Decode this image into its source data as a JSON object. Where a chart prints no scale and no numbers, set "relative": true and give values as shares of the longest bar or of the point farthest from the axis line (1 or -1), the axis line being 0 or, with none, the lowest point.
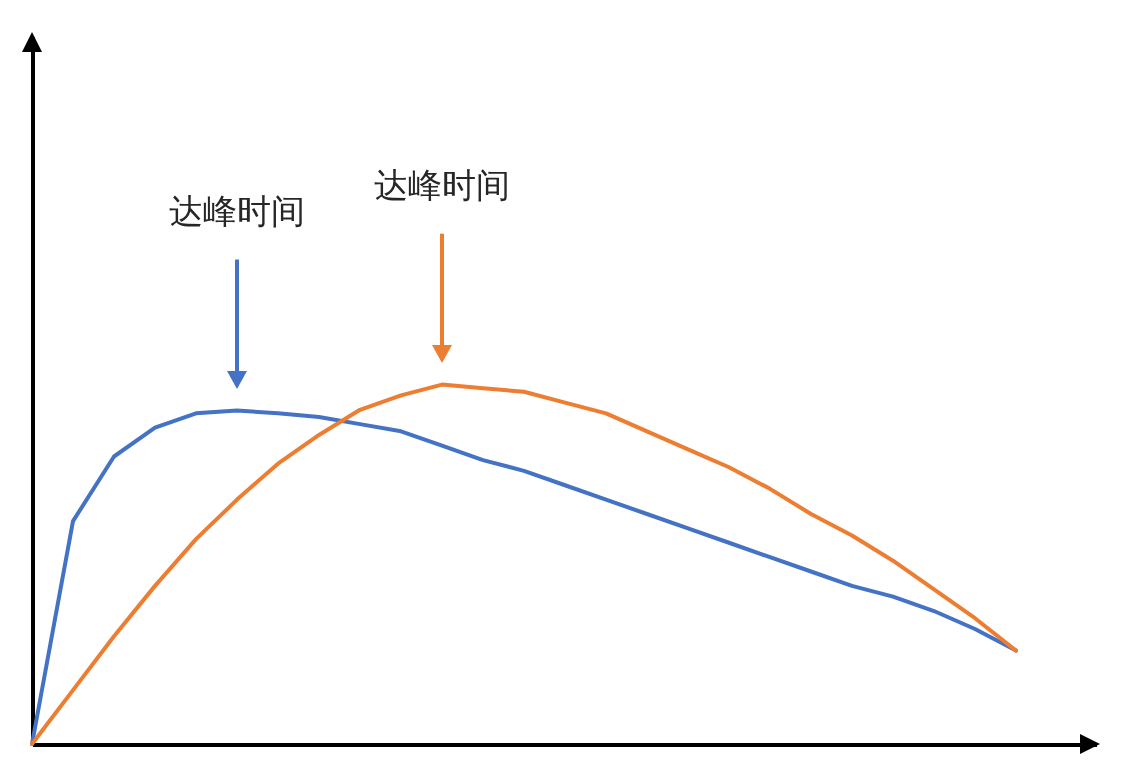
{
  "chart_data": {
    "type": "line",
    "relative": true,
    "categories": [
      null,
      null,
      null,
      null,
      null,
      null,
      null,
      null,
      null,
      null,
      null,
      null,
      null,
      null,
      null,
      null,
      null,
      null,
      null,
      null,
      null,
      null,
      null,
      null,
      null
    ],
    "annotations": [
      "达峰时间",
      "达峰时间"
    ],
    "series": [
      {
        "color": "#4472c4",
        "values": [
          0,
          0.62,
          0.8,
          0.88,
          0.92,
          0.928,
          0.92,
          0.91,
          0.89,
          0.87,
          0.83,
          0.79,
          0.76,
          0.72,
          0.68,
          0.64,
          0.6,
          0.56,
          0.52,
          0.48,
          0.44,
          0.41,
          0.37,
          0.32,
          0.26
        ]
      },
      {
        "color": "#ed7d31",
        "values": [
          0,
          0.15,
          0.3,
          0.44,
          0.57,
          0.68,
          0.78,
          0.86,
          0.93,
          0.97,
          1,
          0.99,
          0.98,
          0.95,
          0.92,
          0.87,
          0.82,
          0.77,
          0.71,
          0.64,
          0.58,
          0.51,
          0.43,
          0.35,
          0.26
        ]
      }
    ]
  }
}
